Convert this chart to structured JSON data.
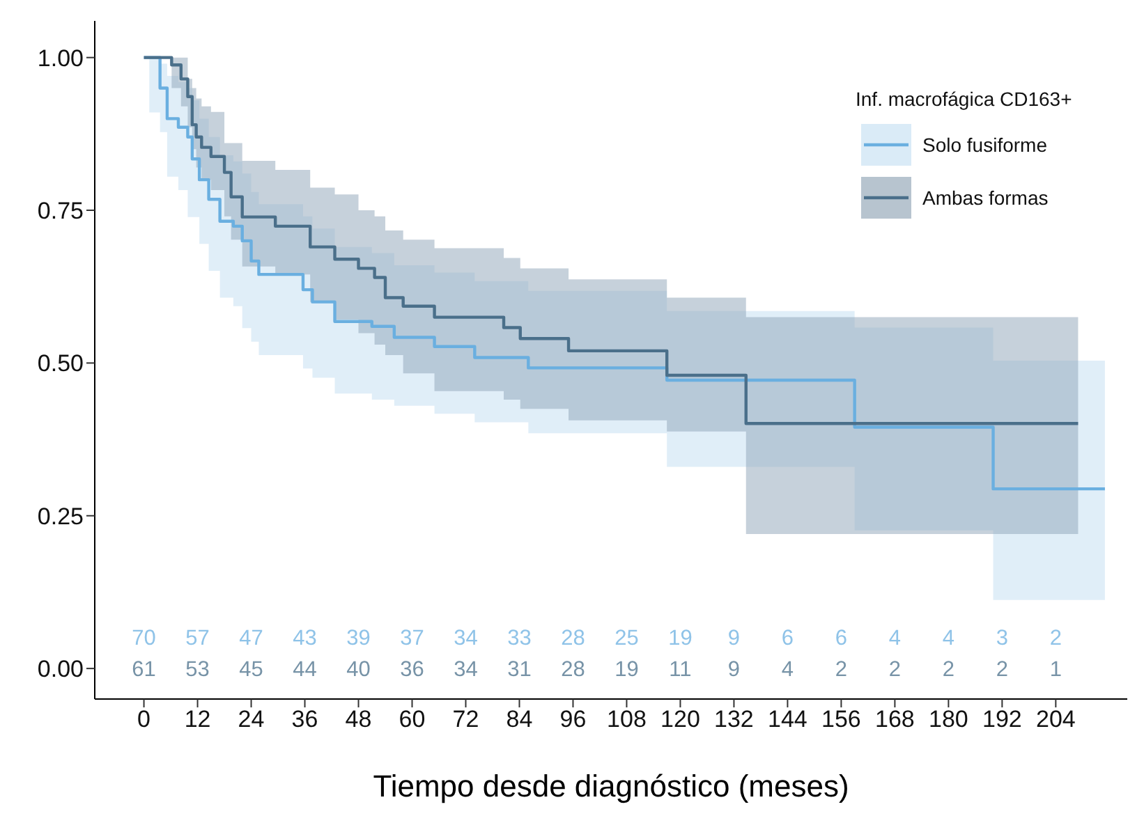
{
  "chart_data": {
    "type": "step",
    "xlabel": "Tiempo desde diagnóstico (meses)",
    "legend_title": "Inf. macrofágica CD163+",
    "legend": "top right",
    "grid": false,
    "marker": "none",
    "line_style": "solid",
    "xlim": [
      -11,
      220
    ],
    "xticks": [
      0,
      12,
      24,
      36,
      48,
      60,
      72,
      84,
      96,
      108,
      120,
      132,
      144,
      156,
      168,
      180,
      192,
      204
    ],
    "ylim": [
      -0.05,
      1.06
    ],
    "yticks": [
      {
        "value": 0,
        "label": "0.00"
      },
      {
        "value": 0.25,
        "label": "0.25"
      },
      {
        "value": 0.5,
        "label": "0.50"
      },
      {
        "value": 0.75,
        "label": "0.75"
      },
      {
        "value": 1,
        "label": "1.00"
      }
    ],
    "series": [
      {
        "name": "Solo fusiforme",
        "color": "#6aafe0",
        "x": [
          0,
          1.2,
          3.6,
          5.2,
          7.7,
          9.8,
          10.8,
          12.4,
          14.5,
          17,
          20,
          22,
          24,
          25.7,
          35.6,
          37.7,
          42.7,
          51,
          56,
          65,
          74,
          86,
          117,
          159,
          190,
          215
        ],
        "values": [
          1,
          1,
          0.95,
          0.9,
          0.886,
          0.87,
          0.834,
          0.8,
          0.768,
          0.732,
          0.724,
          0.7,
          0.667,
          0.645,
          0.62,
          0.6,
          0.568,
          0.56,
          0.542,
          0.527,
          0.509,
          0.492,
          0.472,
          0.395,
          0.294,
          0.294
        ],
        "lower": [
          1,
          0.91,
          0.878,
          0.805,
          0.783,
          0.739,
          0.739,
          0.695,
          0.651,
          0.607,
          0.593,
          0.557,
          0.535,
          0.513,
          0.491,
          0.476,
          0.45,
          0.44,
          0.43,
          0.417,
          0.403,
          0.385,
          0.33,
          0.226,
          0.112,
          0.112
        ],
        "upper": [
          1,
          1,
          0.99,
          0.97,
          0.96,
          0.95,
          0.93,
          0.9,
          0.87,
          0.84,
          0.83,
          0.81,
          0.78,
          0.76,
          0.74,
          0.72,
          0.69,
          0.68,
          0.66,
          0.648,
          0.634,
          0.618,
          0.585,
          0.558,
          0.504,
          0.504
        ]
      },
      {
        "name": "Ambas formas",
        "color": "#4a6f8a",
        "x": [
          0,
          6.2,
          8.3,
          9.8,
          10.8,
          11.7,
          12.9,
          15,
          18,
          19.5,
          22,
          29.4,
          37.2,
          42.7,
          48,
          51.6,
          54,
          58,
          65,
          80.5,
          84.2,
          95,
          117,
          134.7,
          209
        ],
        "values": [
          1,
          0.988,
          0.965,
          0.936,
          0.89,
          0.87,
          0.853,
          0.838,
          0.812,
          0.772,
          0.739,
          0.724,
          0.69,
          0.67,
          0.655,
          0.64,
          0.607,
          0.593,
          0.575,
          0.558,
          0.54,
          0.52,
          0.48,
          0.401,
          0.401
        ],
        "lower": [
          1,
          0.95,
          0.92,
          0.886,
          0.85,
          0.82,
          0.8,
          0.783,
          0.74,
          0.702,
          0.658,
          0.645,
          0.6,
          0.571,
          0.549,
          0.53,
          0.513,
          0.483,
          0.454,
          0.44,
          0.425,
          0.406,
          0.388,
          0.22,
          0.22
        ],
        "upper": [
          1,
          1,
          1,
          0.965,
          0.95,
          0.933,
          0.92,
          0.911,
          0.86,
          0.86,
          0.831,
          0.816,
          0.787,
          0.776,
          0.75,
          0.74,
          0.717,
          0.702,
          0.688,
          0.672,
          0.655,
          0.637,
          0.607,
          0.575,
          0.575
        ]
      }
    ],
    "annotations": [
      "70 57 47 43 39 37 34 33 28 25 19 9 6 6 4 4 3 2",
      "61 53 45 44 40 36 34 31 28 19 11 9 4 2 2 2 2 1"
    ]
  }
}
